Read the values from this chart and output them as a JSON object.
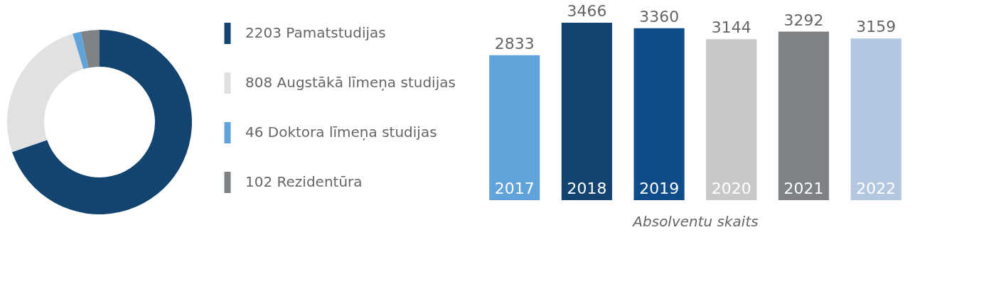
{
  "chart_data": [
    {
      "type": "donut",
      "categories": [
        "Pamatstudijas",
        "Augstākā līmeņa studijas",
        "Doktora līmeņa studijas",
        "Rezidentūra"
      ],
      "values": [
        2203,
        808,
        46,
        102
      ],
      "colors": [
        "#12446f",
        "#e0e1e3",
        "#5fa3da",
        "#7f8285"
      ],
      "value_labels": [
        "2203",
        "808",
        "46",
        "102"
      ],
      "legend": "right"
    },
    {
      "type": "bar",
      "categories": [
        "2017",
        "2018",
        "2019",
        "2020",
        "2021",
        "2022"
      ],
      "values": [
        2833,
        3466,
        3360,
        3144,
        3292,
        3159
      ],
      "colors": [
        "#5fa3da",
        "#12446f",
        "#0e4c8a",
        "#c8c8c8",
        "#7f8285",
        "#b3c7e0"
      ],
      "data_labels": true,
      "xlabel": "Absolventu skaits"
    }
  ]
}
